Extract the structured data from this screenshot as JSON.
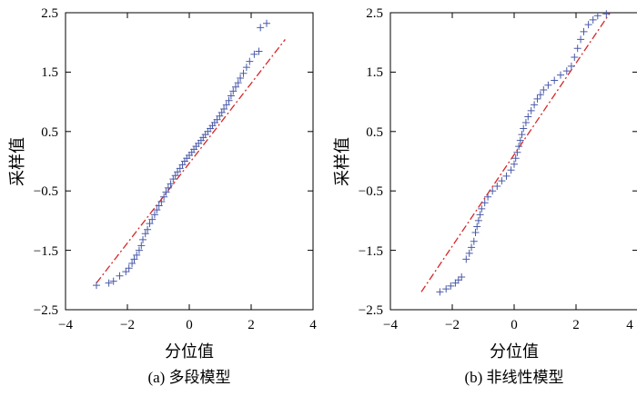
{
  "chart_data": [
    {
      "type": "scatter",
      "panel_id": "a",
      "caption": "(a) 多段模型",
      "xlabel": "分位值",
      "ylabel": "采样值",
      "xlim": [
        -4,
        4
      ],
      "ylim": [
        -2.5,
        2.5
      ],
      "xticks": [
        "−4",
        "−2",
        "0",
        "2",
        "4"
      ],
      "yticks": [
        "2.5",
        "1.5",
        "0.5",
        "−0.5",
        "−1.5",
        "−2.5"
      ],
      "grid": false,
      "reference_line": {
        "x": [
          -3.0,
          3.1
        ],
        "y": [
          -2.05,
          2.05
        ],
        "color": "#d62728",
        "style": "dash-dot"
      },
      "marker_color": "#4a5aa8",
      "points": [
        [
          -3.0,
          -2.09
        ],
        [
          -2.6,
          -2.05
        ],
        [
          -2.45,
          -2.02
        ],
        [
          -2.25,
          -1.93
        ],
        [
          -2.05,
          -1.86
        ],
        [
          -1.95,
          -1.8
        ],
        [
          -1.85,
          -1.72
        ],
        [
          -1.78,
          -1.65
        ],
        [
          -1.7,
          -1.58
        ],
        [
          -1.62,
          -1.5
        ],
        [
          -1.55,
          -1.42
        ],
        [
          -1.5,
          -1.32
        ],
        [
          -1.42,
          -1.22
        ],
        [
          -1.35,
          -1.15
        ],
        [
          -1.28,
          -1.05
        ],
        [
          -1.2,
          -0.98
        ],
        [
          -1.12,
          -0.9
        ],
        [
          -1.05,
          -0.82
        ],
        [
          -0.98,
          -0.75
        ],
        [
          -0.9,
          -0.68
        ],
        [
          -0.82,
          -0.6
        ],
        [
          -0.75,
          -0.52
        ],
        [
          -0.68,
          -0.45
        ],
        [
          -0.6,
          -0.38
        ],
        [
          -0.52,
          -0.3
        ],
        [
          -0.45,
          -0.24
        ],
        [
          -0.38,
          -0.18
        ],
        [
          -0.3,
          -0.12
        ],
        [
          -0.22,
          -0.06
        ],
        [
          -0.15,
          0.0
        ],
        [
          -0.08,
          0.05
        ],
        [
          0.0,
          0.1
        ],
        [
          0.08,
          0.15
        ],
        [
          0.15,
          0.2
        ],
        [
          0.22,
          0.25
        ],
        [
          0.3,
          0.3
        ],
        [
          0.38,
          0.35
        ],
        [
          0.45,
          0.4
        ],
        [
          0.52,
          0.45
        ],
        [
          0.6,
          0.5
        ],
        [
          0.68,
          0.55
        ],
        [
          0.75,
          0.6
        ],
        [
          0.82,
          0.65
        ],
        [
          0.9,
          0.7
        ],
        [
          0.98,
          0.76
        ],
        [
          1.05,
          0.82
        ],
        [
          1.12,
          0.88
        ],
        [
          1.2,
          0.95
        ],
        [
          1.28,
          1.02
        ],
        [
          1.35,
          1.1
        ],
        [
          1.42,
          1.18
        ],
        [
          1.5,
          1.25
        ],
        [
          1.58,
          1.32
        ],
        [
          1.65,
          1.4
        ],
        [
          1.75,
          1.48
        ],
        [
          1.85,
          1.58
        ],
        [
          1.95,
          1.68
        ],
        [
          2.1,
          1.8
        ],
        [
          2.25,
          1.85
        ],
        [
          2.3,
          2.25
        ],
        [
          2.5,
          2.32
        ]
      ]
    },
    {
      "type": "scatter",
      "panel_id": "b",
      "caption": "(b) 非线性模型",
      "xlabel": "分位值",
      "ylabel": "采样值",
      "xlim": [
        -4,
        4
      ],
      "ylim": [
        -2.5,
        2.5
      ],
      "xticks": [
        "−4",
        "−2",
        "0",
        "2",
        "4"
      ],
      "yticks": [
        "2.5",
        "1.5",
        "0.5",
        "−0.5",
        "−1.5",
        "−2.5"
      ],
      "grid": false,
      "reference_line": {
        "x": [
          -3.0,
          3.1
        ],
        "y": [
          -2.2,
          2.5
        ],
        "color": "#d62728",
        "style": "dash-dot"
      },
      "marker_color": "#4a5aa8",
      "points": [
        [
          -2.4,
          -2.2
        ],
        [
          -2.2,
          -2.15
        ],
        [
          -2.05,
          -2.1
        ],
        [
          -1.9,
          -2.05
        ],
        [
          -1.8,
          -2.0
        ],
        [
          -1.7,
          -1.95
        ],
        [
          -1.55,
          -1.65
        ],
        [
          -1.45,
          -1.55
        ],
        [
          -1.38,
          -1.45
        ],
        [
          -1.3,
          -1.35
        ],
        [
          -1.25,
          -1.2
        ],
        [
          -1.2,
          -1.1
        ],
        [
          -1.15,
          -1.0
        ],
        [
          -1.1,
          -0.9
        ],
        [
          -1.05,
          -0.8
        ],
        [
          -0.95,
          -0.7
        ],
        [
          -0.85,
          -0.6
        ],
        [
          -0.7,
          -0.5
        ],
        [
          -0.55,
          -0.42
        ],
        [
          -0.4,
          -0.33
        ],
        [
          -0.25,
          -0.25
        ],
        [
          -0.1,
          -0.15
        ],
        [
          0.0,
          -0.05
        ],
        [
          0.05,
          0.05
        ],
        [
          0.1,
          0.15
        ],
        [
          0.15,
          0.25
        ],
        [
          0.2,
          0.35
        ],
        [
          0.25,
          0.45
        ],
        [
          0.3,
          0.55
        ],
        [
          0.38,
          0.65
        ],
        [
          0.45,
          0.75
        ],
        [
          0.55,
          0.85
        ],
        [
          0.65,
          0.95
        ],
        [
          0.75,
          1.05
        ],
        [
          0.85,
          1.12
        ],
        [
          0.95,
          1.2
        ],
        [
          1.1,
          1.28
        ],
        [
          1.3,
          1.36
        ],
        [
          1.5,
          1.45
        ],
        [
          1.7,
          1.52
        ],
        [
          1.85,
          1.6
        ],
        [
          1.95,
          1.75
        ],
        [
          2.05,
          1.9
        ],
        [
          2.15,
          2.05
        ],
        [
          2.25,
          2.18
        ],
        [
          2.4,
          2.3
        ],
        [
          2.55,
          2.38
        ],
        [
          2.7,
          2.45
        ],
        [
          2.98,
          2.48
        ]
      ]
    }
  ]
}
